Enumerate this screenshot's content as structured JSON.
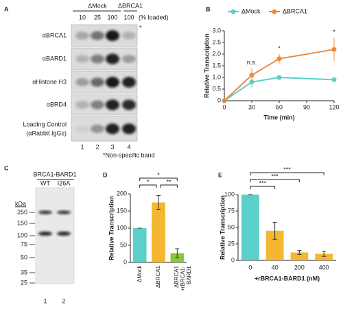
{
  "panel_a": {
    "label": "A",
    "groups": [
      "ΔMock",
      "ΔBRCA1"
    ],
    "loads": [
      "10",
      "25",
      "100",
      "100"
    ],
    "loads_unit": "(% loaded)",
    "asterisk": "*",
    "rows": [
      "αBRCA1",
      "αBARD1",
      "αHistone H3",
      "αBRD4",
      "Loading Control"
    ],
    "row_note": "(αRabbit IgGs)",
    "lanes": [
      "1",
      "2",
      "3",
      "4"
    ],
    "footnote": "*Non-specific band"
  },
  "panel_c": {
    "label": "C",
    "title": "BRCA1-BARD1",
    "lanes_top": [
      "WT",
      "I26A"
    ],
    "unit": "kDa",
    "markers": [
      250,
      150,
      100,
      75,
      50,
      35,
      25
    ],
    "lanes": [
      "1",
      "2"
    ]
  },
  "chart_data": [
    {
      "type": "line",
      "label": "B",
      "x": [
        0,
        30,
        60,
        120
      ],
      "series": [
        {
          "name": "ΔMock",
          "color": "#5bcfc9",
          "values": [
            0,
            0.8,
            1.0,
            0.9
          ],
          "errors": [
            0,
            0.25,
            0.1,
            0.05
          ]
        },
        {
          "name": "ΔBRCA1",
          "color": "#f0883a",
          "values": [
            0,
            1.1,
            1.8,
            2.2
          ],
          "errors": [
            0,
            0.3,
            0.2,
            0.5
          ]
        }
      ],
      "xlabel": "Time (min)",
      "ylabel": "Relative Transcription",
      "xlim": [
        0,
        120
      ],
      "xticks": [
        0,
        30,
        60,
        90,
        120
      ],
      "ylim": [
        0,
        3
      ],
      "yticks": [
        0,
        0.5,
        {
          "value": 1,
          "label": "1.0"
        },
        1.5,
        {
          "value": 2,
          "label": "2.0"
        },
        2.5,
        {
          "value": 3,
          "label": "3.0"
        }
      ],
      "annotations": [
        "n.s.",
        "*",
        "*"
      ]
    },
    {
      "type": "bar",
      "label": "D",
      "categories": [
        "ΔMock",
        "ΔBRCA1",
        "ΔBRCA1 +rBRCA1-BARD1"
      ],
      "values": [
        100,
        175,
        27
      ],
      "errors": [
        0,
        20,
        13
      ],
      "colors": [
        "#5bcfc9",
        "#f5b731",
        "#8cc63f"
      ],
      "ylim": [
        0,
        200
      ],
      "yticks": [
        0,
        50,
        100,
        150,
        200
      ],
      "ylabel": "Relative Transcription",
      "brackets": [
        "*",
        "**",
        "*"
      ]
    },
    {
      "type": "bar",
      "label": "E",
      "categories": [
        "0",
        "40",
        "200",
        "400"
      ],
      "values": [
        100,
        45,
        12,
        10
      ],
      "errors": [
        0,
        13,
        3,
        4
      ],
      "colors": [
        "#5bcfc9",
        "#f5b731",
        "#f5b731",
        "#f5b731"
      ],
      "ylim": [
        0,
        100
      ],
      "yticks": [
        0,
        25,
        50,
        75,
        100
      ],
      "xlabel": "+rBRCA1-BARD1 (nM)",
      "ylabel": "Relative Transcription",
      "brackets": [
        "***",
        "***",
        "***"
      ]
    }
  ]
}
